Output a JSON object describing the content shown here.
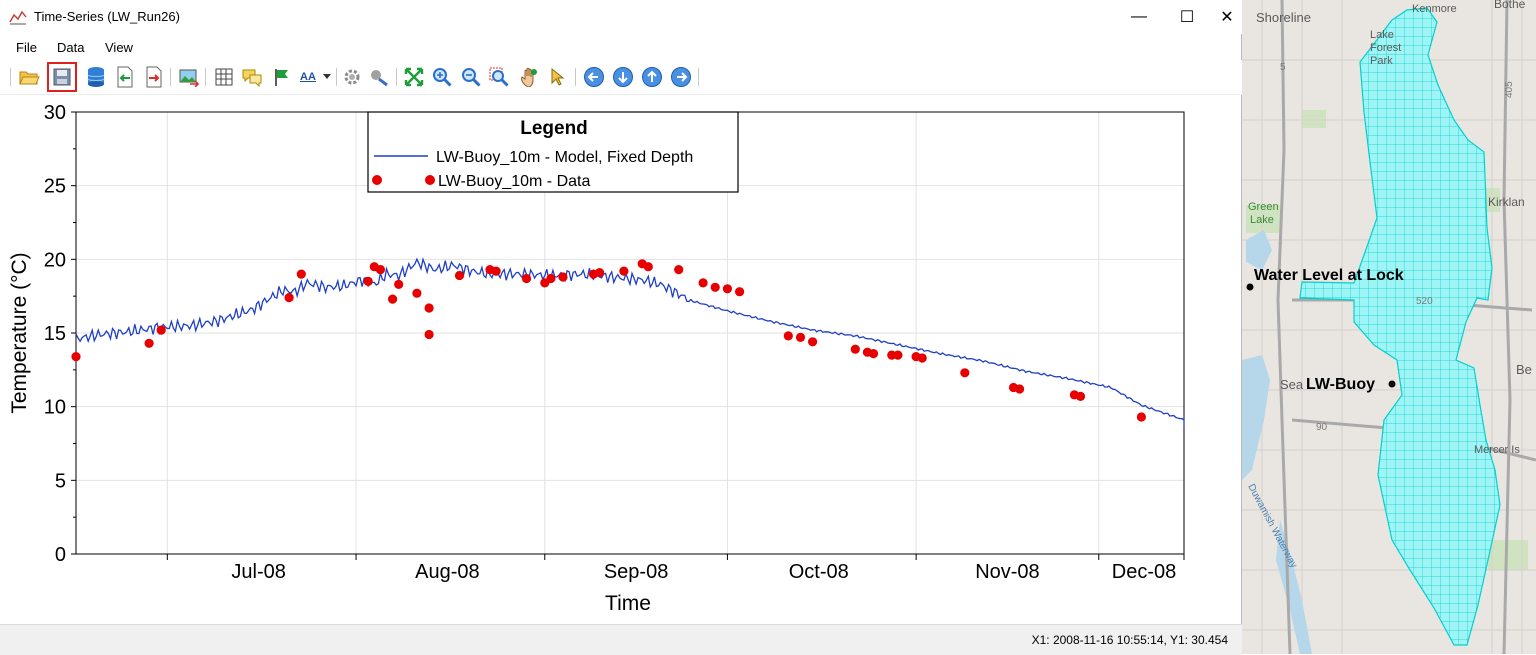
{
  "window": {
    "title": "Time-Series (LW_Run26)",
    "minimize": "—",
    "maximize": "☐",
    "close": "✕"
  },
  "menu": {
    "items": [
      "File",
      "Data",
      "View"
    ]
  },
  "toolbar": {
    "icons": [
      "open-folder-icon",
      "save-icon",
      "database-icon",
      "import-icon",
      "export-icon",
      "image-export-icon",
      "grid-icon",
      "comments-icon",
      "flag-icon",
      "font-size-icon",
      "dropdown-arrow-icon",
      "settings-gear-icon",
      "tools-icon",
      "zoom-extents-icon",
      "zoom-in-icon",
      "zoom-out-icon",
      "zoom-window-icon",
      "pan-icon",
      "select-pointer-icon",
      "arrow-left-icon",
      "arrow-down-icon",
      "arrow-up-icon",
      "arrow-right-icon"
    ],
    "font_size_label": "AA"
  },
  "status": {
    "text": "X1:  2008-11-16 10:55:14, Y1: 30.454"
  },
  "chart_data": {
    "type": "line",
    "title": "",
    "xlabel": "Time",
    "ylabel": "Temperature (°C)",
    "xlim": [
      "2008-06-16",
      "2008-12-15"
    ],
    "ylim": [
      0,
      30
    ],
    "yticks": [
      0,
      5,
      10,
      15,
      20,
      25,
      30
    ],
    "xtick_labels": [
      "Jul-08",
      "Aug-08",
      "Sep-08",
      "Oct-08",
      "Nov-08",
      "Dec-08"
    ],
    "grid": true,
    "legend": {
      "title": "Legend",
      "placement": "top-center",
      "entries": [
        "LW-Buoy_10m - Model, Fixed Depth",
        "LW-Buoy_10m - Data"
      ]
    },
    "series": [
      {
        "name": "LW-Buoy_10m - Model, Fixed Depth",
        "kind": "line",
        "color": "#1f3fc4",
        "points": [
          [
            "2008-06-16",
            14.6
          ],
          [
            "2008-06-20",
            14.9
          ],
          [
            "2008-06-25",
            15.1
          ],
          [
            "2008-06-30",
            15.4
          ],
          [
            "2008-07-05",
            15.5
          ],
          [
            "2008-07-09",
            15.8
          ],
          [
            "2008-07-12",
            16.2
          ],
          [
            "2008-07-15",
            16.6
          ],
          [
            "2008-07-18",
            17.4
          ],
          [
            "2008-07-20",
            17.9
          ],
          [
            "2008-07-22",
            17.8
          ],
          [
            "2008-07-24",
            18.4
          ],
          [
            "2008-07-27",
            18.1
          ],
          [
            "2008-07-30",
            18.2
          ],
          [
            "2008-08-02",
            18.6
          ],
          [
            "2008-08-04",
            18.3
          ],
          [
            "2008-08-06",
            19.0
          ],
          [
            "2008-08-08",
            18.9
          ],
          [
            "2008-08-11",
            19.8
          ],
          [
            "2008-08-14",
            19.3
          ],
          [
            "2008-08-17",
            19.6
          ],
          [
            "2008-08-20",
            19.2
          ],
          [
            "2008-08-23",
            19.0
          ],
          [
            "2008-08-28",
            19.0
          ],
          [
            "2008-09-02",
            18.9
          ],
          [
            "2008-09-07",
            19.0
          ],
          [
            "2008-09-12",
            18.8
          ],
          [
            "2008-09-17",
            18.6
          ],
          [
            "2008-09-20",
            18.3
          ],
          [
            "2008-09-25",
            17.2
          ],
          [
            "2008-10-01",
            16.5
          ],
          [
            "2008-10-08",
            15.8
          ],
          [
            "2008-10-15",
            15.2
          ],
          [
            "2008-10-22",
            14.8
          ],
          [
            "2008-10-29",
            14.2
          ],
          [
            "2008-11-05",
            13.6
          ],
          [
            "2008-11-12",
            13.1
          ],
          [
            "2008-11-19",
            12.4
          ],
          [
            "2008-11-26",
            11.9
          ],
          [
            "2008-12-03",
            11.3
          ],
          [
            "2008-12-08",
            10.1
          ],
          [
            "2008-12-15",
            9.1
          ],
          [
            "2008-12-22",
            8.6
          ]
        ]
      },
      {
        "name": "LW-Buoy_10m - Data",
        "kind": "scatter",
        "color": "#e60000",
        "points": [
          [
            "2008-06-16",
            13.4
          ],
          [
            "2008-06-28",
            14.3
          ],
          [
            "2008-06-30",
            15.2
          ],
          [
            "2008-07-21",
            17.4
          ],
          [
            "2008-07-23",
            19.0
          ],
          [
            "2008-08-03",
            18.5
          ],
          [
            "2008-08-04",
            19.5
          ],
          [
            "2008-08-05",
            19.3
          ],
          [
            "2008-08-07",
            17.3
          ],
          [
            "2008-08-08",
            18.3
          ],
          [
            "2008-08-11",
            17.7
          ],
          [
            "2008-08-13",
            16.7
          ],
          [
            "2008-08-13",
            14.9
          ],
          [
            "2008-08-18",
            18.9
          ],
          [
            "2008-08-23",
            19.3
          ],
          [
            "2008-08-24",
            19.2
          ],
          [
            "2008-08-29",
            18.7
          ],
          [
            "2008-09-01",
            18.4
          ],
          [
            "2008-09-02",
            18.7
          ],
          [
            "2008-09-04",
            18.8
          ],
          [
            "2008-09-09",
            19.0
          ],
          [
            "2008-09-10",
            19.1
          ],
          [
            "2008-09-14",
            19.2
          ],
          [
            "2008-09-17",
            19.7
          ],
          [
            "2008-09-18",
            19.5
          ],
          [
            "2008-09-23",
            19.3
          ],
          [
            "2008-09-27",
            18.4
          ],
          [
            "2008-09-29",
            18.1
          ],
          [
            "2008-10-01",
            18.0
          ],
          [
            "2008-10-03",
            17.8
          ],
          [
            "2008-10-11",
            14.8
          ],
          [
            "2008-10-13",
            14.7
          ],
          [
            "2008-10-15",
            14.4
          ],
          [
            "2008-10-22",
            13.9
          ],
          [
            "2008-10-24",
            13.7
          ],
          [
            "2008-10-25",
            13.6
          ],
          [
            "2008-10-28",
            13.5
          ],
          [
            "2008-10-29",
            13.5
          ],
          [
            "2008-11-01",
            13.4
          ],
          [
            "2008-11-02",
            13.3
          ],
          [
            "2008-11-09",
            12.3
          ],
          [
            "2008-11-17",
            11.3
          ],
          [
            "2008-11-18",
            11.2
          ],
          [
            "2008-11-27",
            10.8
          ],
          [
            "2008-11-28",
            10.7
          ],
          [
            "2008-12-08",
            9.3
          ]
        ]
      }
    ]
  },
  "map": {
    "places": [
      "Shoreline",
      "Kenmore",
      "Bothell",
      "Lake Forest Park",
      "Green Lake",
      "Kirkland",
      "Seattle",
      "Bellevue",
      "Mercer Island",
      "Duwamish Waterway"
    ],
    "place_labels": {
      "shoreline": "Shoreline",
      "kenmore": "Kenmore",
      "bothell": "Bothe",
      "lfp1": "Lake",
      "lfp2": "Forest",
      "lfp3": "Park",
      "green1": "Green",
      "green2": "Lake",
      "kirkland": "Kirklan",
      "seattle": "Sea",
      "bellevue": "Be",
      "mercer": "Mercer Is",
      "duwamish": "Duwamish Waterway"
    },
    "markers": [
      {
        "label": "Water Level at Lock"
      },
      {
        "label": "LW-Buoy"
      }
    ],
    "highways": [
      "5",
      "405",
      "520",
      "90"
    ],
    "grid_color": "#00e5e5",
    "water_color": "#b6d6ea"
  }
}
